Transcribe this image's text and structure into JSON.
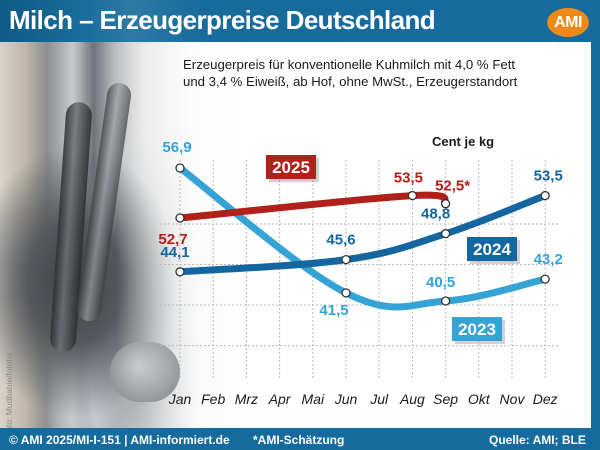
{
  "header": {
    "title": "Milch – Erzeugerpreise Deutschland",
    "logo": "AMI"
  },
  "subtitle_line1": "Erzeugerpreis für konventionelle Kuhmilch mit 4,0 % Fett",
  "subtitle_line2": "und 3,4 % Eiweiß, ab Hof, ohne MwSt., Erzeugerstandort",
  "photo_credit": "Foto: Mudbabie/fotolia",
  "footer": {
    "copyright": "© AMI 2025/MI-I-151 | AMI-informiert.de",
    "note": "*AMI-Schätzung",
    "source": "Quelle: AMI; BLE"
  },
  "colors": {
    "header_blue": "#156a9e",
    "logo_orange": "#ef8a1a",
    "series_2023": "#35a3d6",
    "series_2024": "#1466a0",
    "series_2025": "#b1201a"
  },
  "chart_data": {
    "type": "line",
    "title": "Milch – Erzeugerpreise Deutschland",
    "ylabel": "Cent je kg",
    "xlabel": "",
    "categories": [
      "Jan",
      "Feb",
      "Mrz",
      "Apr",
      "Mai",
      "Jun",
      "Jul",
      "Aug",
      "Sep",
      "Okt",
      "Nov",
      "Dez"
    ],
    "ylim": [
      30,
      65
    ],
    "grid": true,
    "series": [
      {
        "name": "2023",
        "color": "#35a3d6",
        "points": [
          {
            "month": "Jan",
            "value": 56.9,
            "label": "56,9"
          },
          {
            "month": "Jun",
            "value": 41.5,
            "label": "41,5"
          },
          {
            "month": "Sep",
            "value": 40.5,
            "label": "40,5"
          },
          {
            "month": "Dez",
            "value": 43.2,
            "label": "43,2"
          }
        ]
      },
      {
        "name": "2024",
        "color": "#1466a0",
        "points": [
          {
            "month": "Jan",
            "value": 44.1,
            "label": "44,1"
          },
          {
            "month": "Jun",
            "value": 45.6,
            "label": "45,6"
          },
          {
            "month": "Sep",
            "value": 48.8,
            "label": "48,8"
          },
          {
            "month": "Dez",
            "value": 53.5,
            "label": "53,5"
          }
        ]
      },
      {
        "name": "2025",
        "color": "#b1201a",
        "points": [
          {
            "month": "Jan",
            "value": 52.7,
            "label": "52,7"
          },
          {
            "month": "Aug",
            "value": 53.5,
            "label": "53,5"
          },
          {
            "month": "Sep",
            "value": 52.5,
            "label": "52,5*"
          }
        ]
      }
    ],
    "annotations": [
      "*AMI-Schätzung"
    ]
  }
}
